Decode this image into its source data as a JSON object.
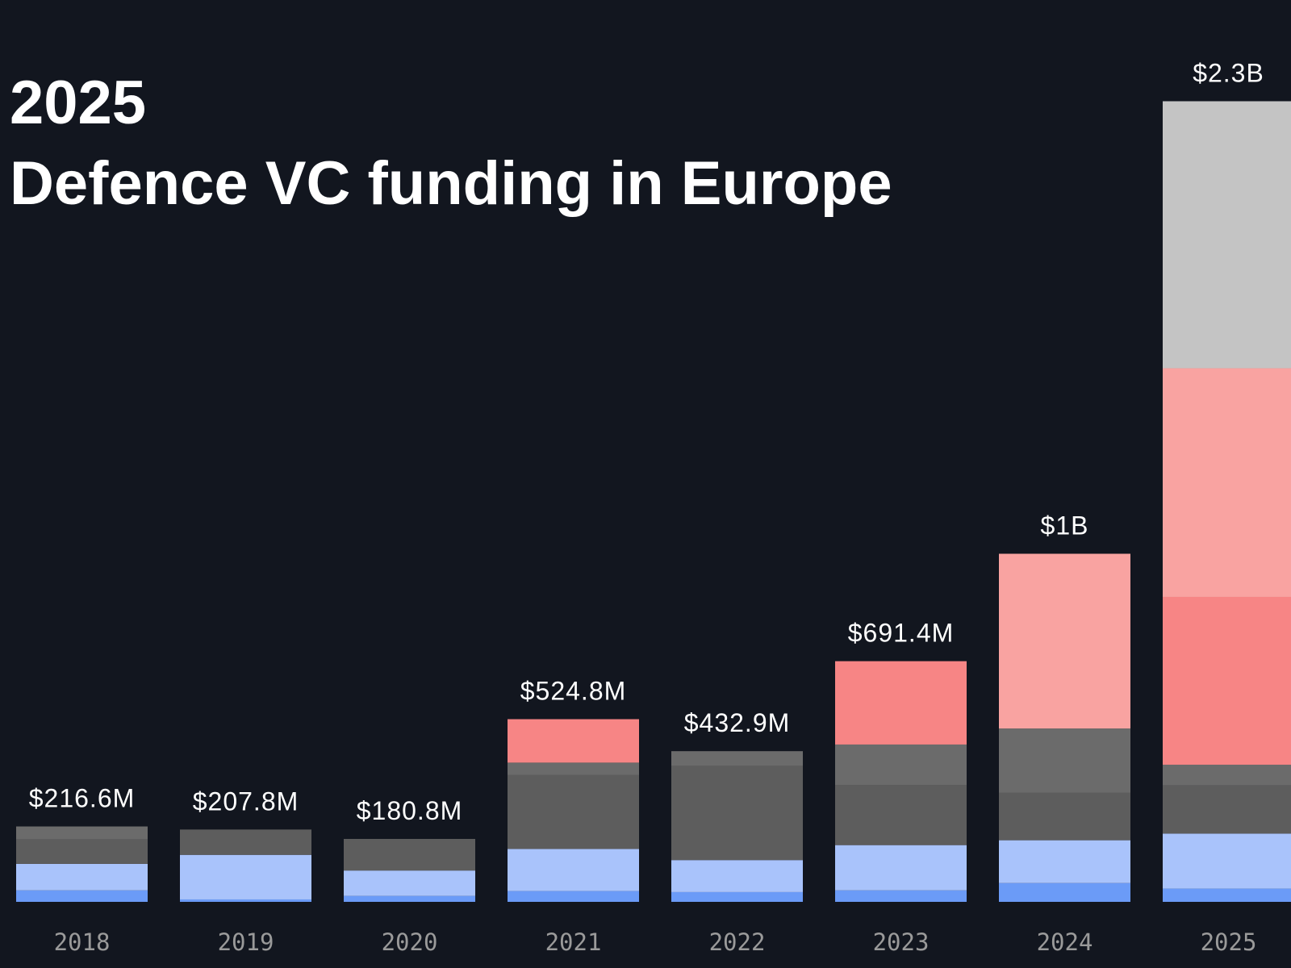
{
  "chart_data": {
    "type": "stacked-bar",
    "title": "2025",
    "subtitle": "Defence VC funding in Europe",
    "categories": [
      "2018",
      "2019",
      "2020",
      "2021",
      "2022",
      "2023",
      "2024",
      "2025"
    ],
    "series": [
      {
        "color": "#6b9bf7",
        "values": [
          33,
          7,
          17,
          31,
          28,
          33,
          54,
          38
        ]
      },
      {
        "color": "#a9c3fb",
        "values": [
          76,
          128,
          73,
          121,
          92,
          130,
          123,
          158
        ]
      },
      {
        "color": "#5d5d5d",
        "values": [
          70,
          72.8,
          90.8,
          213,
          269.9,
          173,
          137,
          139
        ]
      },
      {
        "color": "#6b6b6b",
        "values": [
          37.6,
          0,
          0,
          35,
          43,
          116,
          184,
          59
        ]
      },
      {
        "color": "#f78585",
        "values": [
          0,
          0,
          0,
          124.8,
          0,
          239.4,
          0,
          482
        ]
      },
      {
        "color": "#f9a3a1",
        "values": [
          0,
          0,
          0,
          0,
          0,
          0,
          502,
          657
        ]
      },
      {
        "color": "#c4c4c4",
        "values": [
          0,
          0,
          0,
          0,
          0,
          0,
          0,
          767
        ]
      }
    ],
    "totals": {
      "values": [
        216.6,
        207.8,
        180.8,
        524.8,
        432.9,
        691.4,
        1000,
        2300
      ],
      "value_labels": [
        "$216.6M",
        "$207.8M",
        "$180.8M",
        "$524.8M",
        "$432.9M",
        "$691.4M",
        "$1B",
        "$2.3B"
      ]
    },
    "ylim": [
      0,
      2300
    ]
  }
}
